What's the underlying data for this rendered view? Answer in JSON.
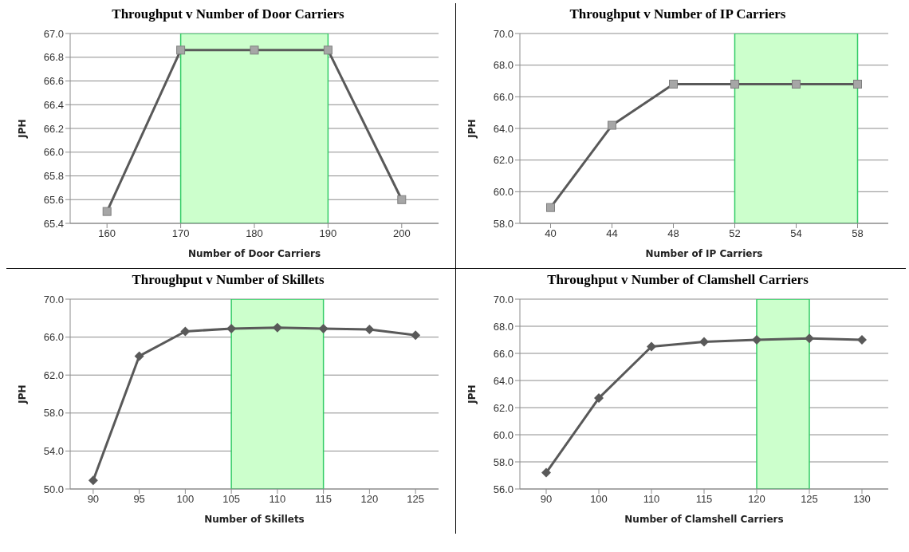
{
  "chart_data": [
    {
      "type": "line",
      "title": "Throughput v Number of Door Carriers",
      "xlabel": "Number of Door Carriers",
      "ylabel": "JPH",
      "categories": [
        "160",
        "170",
        "180",
        "190",
        "200"
      ],
      "series": [
        {
          "color": "#595959",
          "values": [
            65.5,
            66.86,
            66.86,
            66.86,
            65.6
          ]
        }
      ],
      "ylim": [
        65.4,
        67.0
      ],
      "yticks": [
        {
          "value": 65.4,
          "label": "65.4"
        },
        {
          "value": 65.6,
          "label": "65.6"
        },
        {
          "value": 65.8,
          "label": "65.8"
        },
        {
          "value": 66.0,
          "label": "66.0"
        },
        {
          "value": 66.2,
          "label": "66.2"
        },
        {
          "value": 66.4,
          "label": "66.4"
        },
        {
          "value": 66.6,
          "label": "66.6"
        },
        {
          "value": 66.8,
          "label": "66.8"
        },
        {
          "value": 67.0,
          "label": "67.0"
        }
      ],
      "grid": "y",
      "marker": "square",
      "bands": [
        {
          "axis": "x",
          "from": "170",
          "to": "190",
          "color": "#ccffcc"
        }
      ]
    },
    {
      "type": "line",
      "title": "Throughput v Number of IP Carriers",
      "xlabel": "Number of IP Carriers",
      "ylabel": "JPH",
      "categories": [
        "40",
        "44",
        "48",
        "52",
        "54",
        "58"
      ],
      "series": [
        {
          "color": "#595959",
          "values": [
            59.0,
            64.2,
            66.8,
            66.8,
            66.8,
            66.8
          ]
        }
      ],
      "ylim": [
        58.0,
        70.0
      ],
      "yticks": [
        {
          "value": 58,
          "label": "58.0"
        },
        {
          "value": 60,
          "label": "60.0"
        },
        {
          "value": 62,
          "label": "62.0"
        },
        {
          "value": 64,
          "label": "64.0"
        },
        {
          "value": 66,
          "label": "66.0"
        },
        {
          "value": 68,
          "label": "68.0"
        },
        {
          "value": 70,
          "label": "70.0"
        }
      ],
      "grid": "y",
      "marker": "square",
      "bands": [
        {
          "axis": "x",
          "from": "52",
          "to": "58",
          "color": "#ccffcc"
        }
      ]
    },
    {
      "type": "line",
      "title": "Throughput v Number of Skillets",
      "xlabel": "Number of Skillets",
      "ylabel": "JPH",
      "categories": [
        "90",
        "95",
        "100",
        "105",
        "110",
        "115",
        "120",
        "125"
      ],
      "series": [
        {
          "color": "#595959",
          "values": [
            50.9,
            64.0,
            66.6,
            66.9,
            67.0,
            66.9,
            66.8,
            66.2
          ]
        }
      ],
      "ylim": [
        50.0,
        70.0
      ],
      "yticks": [
        {
          "value": 50,
          "label": "50.0"
        },
        {
          "value": 54,
          "label": "54.0"
        },
        {
          "value": 58,
          "label": "58.0"
        },
        {
          "value": 62,
          "label": "62.0"
        },
        {
          "value": 66,
          "label": "66.0"
        },
        {
          "value": 70,
          "label": "70.0"
        }
      ],
      "grid": "y",
      "marker": "diamond",
      "bands": [
        {
          "axis": "x",
          "from": "105",
          "to": "115",
          "color": "#ccffcc"
        }
      ]
    },
    {
      "type": "line",
      "title": "Throughput v Number of Clamshell Carriers",
      "xlabel": "Number of Clamshell Carriers",
      "ylabel": "JPH",
      "categories": [
        "90",
        "100",
        "110",
        "115",
        "120",
        "125",
        "130"
      ],
      "series": [
        {
          "color": "#595959",
          "values": [
            57.2,
            62.7,
            66.5,
            66.85,
            67.0,
            67.1,
            67.0
          ]
        }
      ],
      "ylim": [
        56.0,
        70.0
      ],
      "yticks": [
        {
          "value": 56,
          "label": "56.0"
        },
        {
          "value": 58,
          "label": "58.0"
        },
        {
          "value": 60,
          "label": "60.0"
        },
        {
          "value": 62,
          "label": "62.0"
        },
        {
          "value": 64,
          "label": "64.0"
        },
        {
          "value": 66,
          "label": "66.0"
        },
        {
          "value": 68,
          "label": "68.0"
        },
        {
          "value": 70,
          "label": "70.0"
        }
      ],
      "grid": "y",
      "marker": "diamond",
      "bands": [
        {
          "axis": "x",
          "from": "120",
          "to": "125",
          "color": "#ccffcc"
        }
      ]
    }
  ]
}
